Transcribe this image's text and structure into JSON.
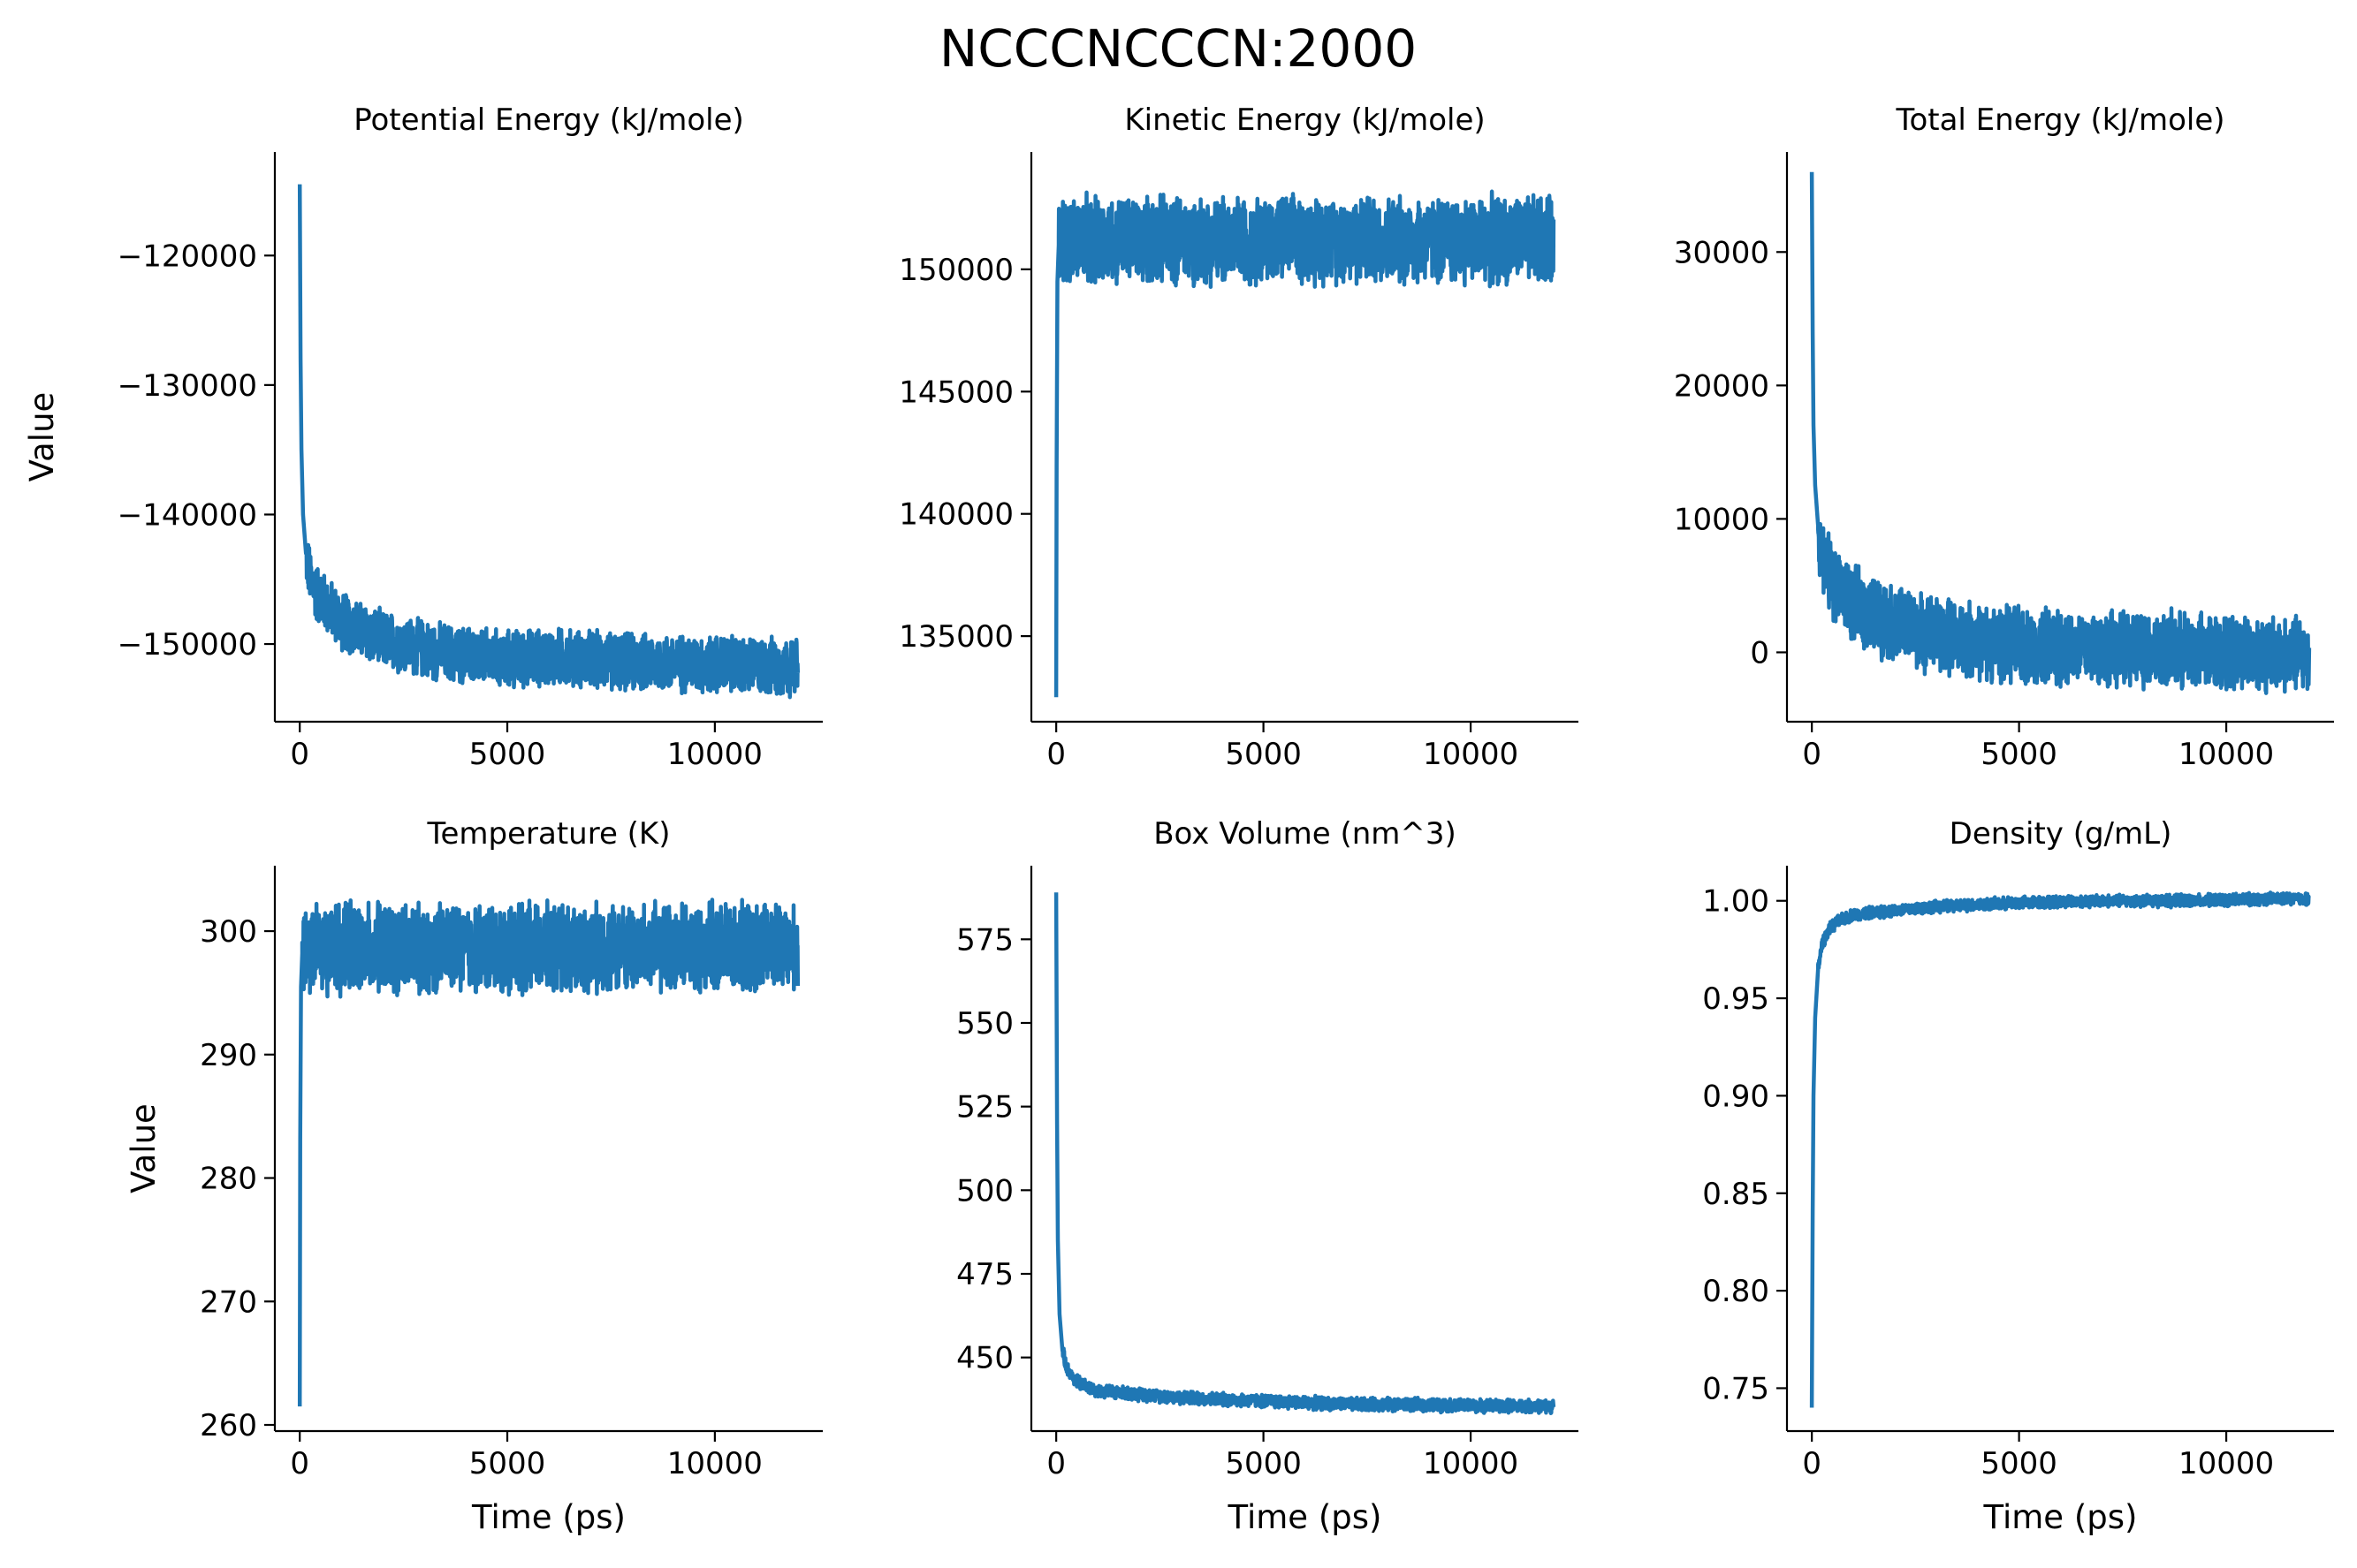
{
  "figure": {
    "title": "NCCCNCCCN:2000",
    "line_color": "#1f77b4"
  },
  "chart_data": [
    {
      "type": "line",
      "title": "Potential Energy (kJ/mole)",
      "xlabel": "",
      "ylabel": "Value",
      "xlim": [
        -600,
        12600
      ],
      "ylim": [
        -156000,
        -112000
      ],
      "xticks": [
        0,
        5000,
        10000
      ],
      "xticklabels": [
        "0",
        "5000",
        "10000"
      ],
      "yticks": [
        -150000,
        -140000,
        -130000,
        -120000
      ],
      "yticklabels": [
        "−150000",
        "−140000",
        "−130000",
        "−120000"
      ],
      "series": [
        {
          "x": [
            0,
            20,
            40,
            80,
            150,
            250,
            400,
            600,
            800,
            1000,
            1500,
            2000,
            3000,
            4000,
            5000,
            6000,
            7000,
            8000,
            9000,
            10000,
            11000,
            12000
          ],
          "y": [
            -114500,
            -128000,
            -135000,
            -140000,
            -143000,
            -145000,
            -146000,
            -146800,
            -147500,
            -148200,
            -149000,
            -149700,
            -150400,
            -150900,
            -151200,
            -151000,
            -151200,
            -151400,
            -151500,
            -151600,
            -151700,
            -151800
          ],
          "noise": 2500,
          "noise_start": 150
        }
      ]
    },
    {
      "type": "line",
      "title": "Kinetic Energy (kJ/mole)",
      "xlabel": "",
      "ylabel": "",
      "xlim": [
        -600,
        12600
      ],
      "ylim": [
        131500,
        154800
      ],
      "xticks": [
        0,
        5000,
        10000
      ],
      "xticklabels": [
        "0",
        "5000",
        "10000"
      ],
      "yticks": [
        135000,
        140000,
        145000,
        150000
      ],
      "yticklabels": [
        "135000",
        "140000",
        "145000",
        "150000"
      ],
      "series": [
        {
          "x": [
            0,
            10,
            30,
            60,
            100,
            200,
            500,
            1000,
            2000,
            4000,
            6000,
            8000,
            10000,
            12000
          ],
          "y": [
            132500,
            142000,
            149500,
            151000,
            151300,
            151200,
            151200,
            151200,
            151200,
            151200,
            151200,
            151200,
            151200,
            151200
          ],
          "noise": 2000,
          "noise_start": 60
        }
      ]
    },
    {
      "type": "line",
      "title": "Total Energy (kJ/mole)",
      "xlabel": "",
      "ylabel": "",
      "xlim": [
        -600,
        12600
      ],
      "ylim": [
        -5200,
        37500
      ],
      "xticks": [
        0,
        5000,
        10000
      ],
      "xticklabels": [
        "0",
        "5000",
        "10000"
      ],
      "yticks": [
        0,
        10000,
        20000,
        30000
      ],
      "yticklabels": [
        "0",
        "10000",
        "20000",
        "30000"
      ],
      "series": [
        {
          "x": [
            0,
            20,
            40,
            80,
            150,
            250,
            400,
            600,
            800,
            1000,
            1500,
            2000,
            3000,
            4000,
            5000,
            6000,
            7000,
            8000,
            9000,
            10000,
            11000,
            12000
          ],
          "y": [
            36000,
            24000,
            17000,
            12500,
            9500,
            7500,
            6000,
            5000,
            4200,
            3600,
            2800,
            2100,
            1300,
            800,
            500,
            400,
            300,
            200,
            100,
            0,
            -100,
            -200
          ],
          "noise": 3200,
          "noise_start": 150
        }
      ]
    },
    {
      "type": "line",
      "title": "Temperature (K)",
      "xlabel": "Time (ps)",
      "ylabel": "Value",
      "xlim": [
        -600,
        12600
      ],
      "ylim": [
        259500,
        305300
      ],
      "xticks": [
        0,
        5000,
        10000
      ],
      "xticklabels": [
        "0",
        "5000",
        "10000"
      ],
      "yticks": [
        260,
        270,
        280,
        290,
        300
      ],
      "yticklabels": [
        "260",
        "270",
        "280",
        "290",
        "300"
      ],
      "tick_scale": 1000,
      "series": [
        {
          "x": [
            0,
            10,
            30,
            60,
            100,
            200,
            500,
            1000,
            2000,
            4000,
            6000,
            8000,
            10000,
            12000
          ],
          "y": [
            261500,
            283000,
            295500,
            298200,
            298700,
            298600,
            298600,
            298600,
            298600,
            298600,
            298600,
            298600,
            298600,
            298600
          ],
          "noise": 4000,
          "noise_start": 60
        }
      ]
    },
    {
      "type": "line",
      "title": "Box Volume (nm^3)",
      "xlabel": "Time (ps)",
      "ylabel": "",
      "xlim": [
        -600,
        12600
      ],
      "ylim": [
        428,
        597
      ],
      "xticks": [
        0,
        5000,
        10000
      ],
      "xticklabels": [
        "0",
        "5000",
        "10000"
      ],
      "yticks": [
        450,
        475,
        500,
        525,
        550,
        575
      ],
      "yticklabels": [
        "450",
        "475",
        "500",
        "525",
        "550",
        "575"
      ],
      "series": [
        {
          "x": [
            0,
            20,
            40,
            80,
            150,
            250,
            400,
            600,
            800,
            1000,
            1500,
            2000,
            3000,
            4000,
            5000,
            6000,
            7000,
            8000,
            9000,
            10000,
            11000,
            12000
          ],
          "y": [
            589,
            520,
            485,
            463,
            452,
            447,
            444,
            442,
            441,
            440,
            439.5,
            439,
            438,
            437.5,
            437,
            436.5,
            436,
            436,
            435.8,
            435.6,
            435.5,
            435.4
          ],
          "noise": 2.2,
          "noise_start": 150
        }
      ]
    },
    {
      "type": "line",
      "title": "Density (g/mL)",
      "xlabel": "Time (ps)",
      "ylabel": "",
      "xlim": [
        -600,
        12600
      ],
      "ylim": [
        0.728,
        1.018
      ],
      "xticks": [
        0,
        5000,
        10000
      ],
      "xticklabels": [
        "0",
        "5000",
        "10000"
      ],
      "yticks": [
        0.75,
        0.8,
        0.85,
        0.9,
        0.95,
        1.0
      ],
      "yticklabels": [
        "0.75",
        "0.80",
        "0.85",
        "0.90",
        "0.95",
        "1.00"
      ],
      "series": [
        {
          "x": [
            0,
            20,
            40,
            80,
            150,
            250,
            400,
            600,
            800,
            1000,
            1500,
            2000,
            3000,
            4000,
            5000,
            6000,
            7000,
            8000,
            9000,
            10000,
            11000,
            12000
          ],
          "y": [
            0.74,
            0.84,
            0.9,
            0.94,
            0.965,
            0.978,
            0.985,
            0.989,
            0.991,
            0.993,
            0.994,
            0.995,
            0.997,
            0.998,
            0.999,
            0.9995,
            1.0,
            1.0,
            1.0,
            1.0005,
            1.001,
            1.001
          ],
          "noise": 0.0035,
          "noise_start": 150
        }
      ]
    }
  ]
}
